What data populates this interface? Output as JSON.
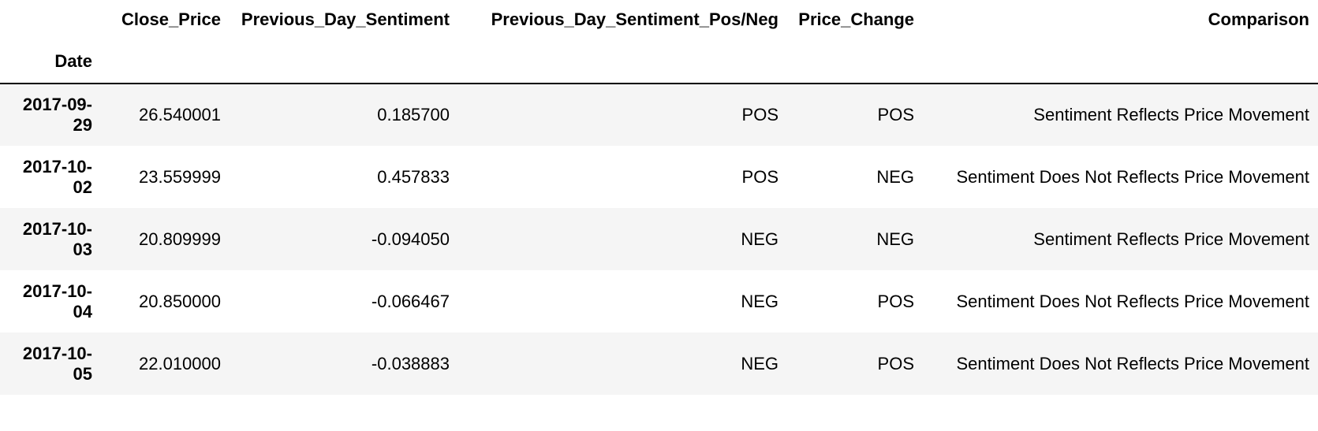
{
  "table": {
    "index_name": "Date",
    "columns": [
      "Close_Price",
      "Previous_Day_Sentiment",
      "Previous_Day_Sentiment_Pos/Neg",
      "Price_Change",
      "Comparison"
    ],
    "rows": [
      {
        "date_line1": "2017-09-",
        "date_line2": "29",
        "close_price": "26.540001",
        "previous_day_sentiment": "0.185700",
        "sentiment_pos_neg": "POS",
        "price_change": "POS",
        "comparison": "Sentiment Reflects Price Movement"
      },
      {
        "date_line1": "2017-10-",
        "date_line2": "02",
        "close_price": "23.559999",
        "previous_day_sentiment": "0.457833",
        "sentiment_pos_neg": "POS",
        "price_change": "NEG",
        "comparison": "Sentiment Does Not Reflects Price Movement"
      },
      {
        "date_line1": "2017-10-",
        "date_line2": "03",
        "close_price": "20.809999",
        "previous_day_sentiment": "-0.094050",
        "sentiment_pos_neg": "NEG",
        "price_change": "NEG",
        "comparison": "Sentiment Reflects Price Movement"
      },
      {
        "date_line1": "2017-10-",
        "date_line2": "04",
        "close_price": "20.850000",
        "previous_day_sentiment": "-0.066467",
        "sentiment_pos_neg": "NEG",
        "price_change": "POS",
        "comparison": "Sentiment Does Not Reflects Price Movement"
      },
      {
        "date_line1": "2017-10-",
        "date_line2": "05",
        "close_price": "22.010000",
        "previous_day_sentiment": "-0.038883",
        "sentiment_pos_neg": "NEG",
        "price_change": "POS",
        "comparison": "Sentiment Does Not Reflects Price Movement"
      }
    ]
  },
  "colors": {
    "stripe": "#f5f5f5",
    "rule": "#000000"
  }
}
